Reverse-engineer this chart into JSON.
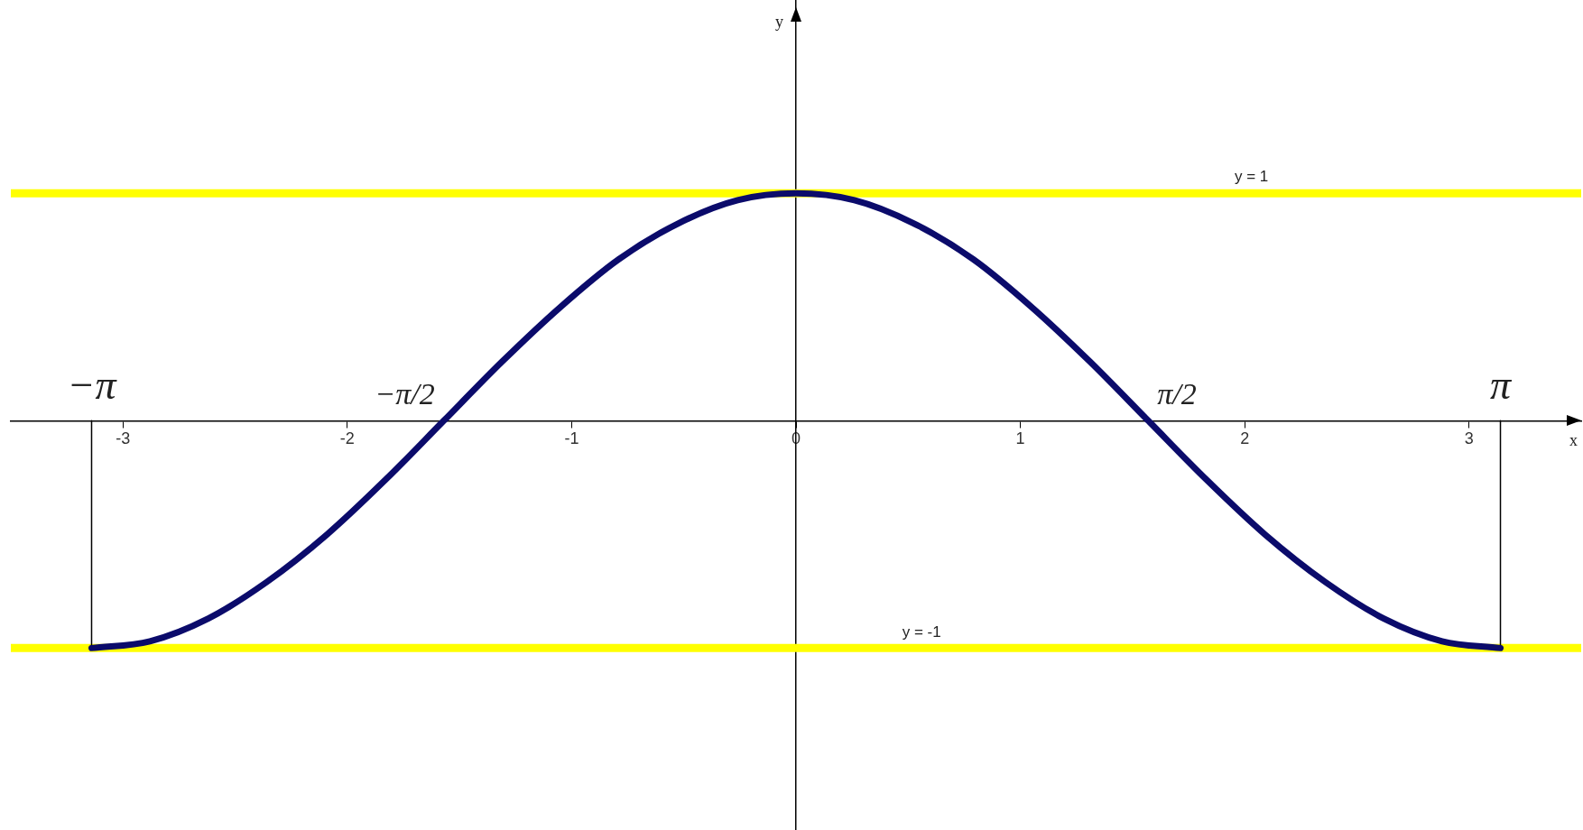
{
  "chart_data": {
    "type": "line",
    "xlabel": "x",
    "ylabel": "y",
    "xlim": [
      -3.5,
      3.5
    ],
    "ylim": [
      -1.8,
      1.85
    ],
    "xticks": [
      -3,
      -2,
      -1,
      0,
      1,
      2,
      3
    ],
    "yticks": [
      {
        "value": -1,
        "label": null
      },
      {
        "value": 1,
        "label": null
      }
    ],
    "tick_labels": "x",
    "grid": false,
    "legend": false,
    "marker": "none",
    "line_style": "solid",
    "series": [
      {
        "color": "#0b0b6b",
        "x": [
          -3.14,
          -2.88,
          -2.62,
          -2.36,
          -2.09,
          -1.83,
          -1.57,
          -1.31,
          -1.05,
          -0.79,
          -0.52,
          -0.26,
          0,
          0.26,
          0.52,
          0.79,
          1.05,
          1.31,
          1.57,
          1.83,
          2.09,
          2.36,
          2.62,
          2.88,
          3.14
        ],
        "values": [
          -1,
          -0.97,
          -0.87,
          -0.71,
          -0.5,
          -0.26,
          0,
          0.26,
          0.5,
          0.71,
          0.87,
          0.97,
          1,
          0.97,
          0.87,
          0.71,
          0.5,
          0.26,
          0,
          -0.26,
          -0.5,
          -0.71,
          -0.87,
          -0.97,
          -1
        ]
      },
      {
        "color": "#000000",
        "x": [
          -3.14,
          -3.14
        ],
        "values": [
          0,
          -1
        ]
      },
      {
        "color": "#000000",
        "x": [
          3.14,
          3.14
        ],
        "values": [
          0,
          -1
        ]
      }
    ],
    "ref_lines": [
      {
        "axis": "y",
        "value": 1,
        "label": "y = 1",
        "color": "#ffff00"
      },
      {
        "axis": "y",
        "value": -1,
        "label": "y = -1",
        "color": "#ffff00"
      }
    ],
    "annotations": [
      {
        "text": "−π",
        "x": -3.14,
        "y": 0
      },
      {
        "text": "−π/2",
        "x": -1.57,
        "y": 0
      },
      {
        "text": "π/2",
        "x": 1.57,
        "y": 0
      },
      {
        "text": "π",
        "x": 3.14,
        "y": 0
      }
    ]
  }
}
